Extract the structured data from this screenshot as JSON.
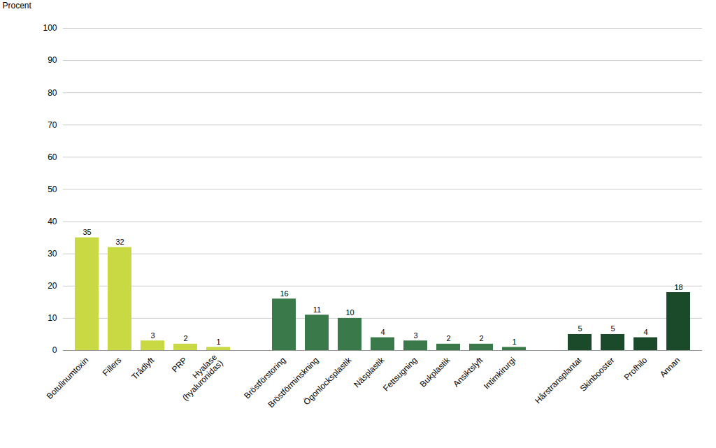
{
  "chart_data": {
    "type": "bar",
    "ylabel": "Procent",
    "categories": [
      "Botulinumtoxin",
      "Fillers",
      "Trådlyft",
      "PRP",
      "Hyalase\n(hyaluronidas)",
      null,
      "Bröstförstoring",
      "Bröstförminskning",
      "Ögonlocksplastik",
      "Näsplastik",
      "Fettsugning",
      "Bukplastik",
      "Ansiktslyft",
      "Intimkirurgi",
      null,
      "Hårstransplantat",
      "Skinbooster",
      "Profhilo",
      "Annan"
    ],
    "values": [
      35,
      32,
      3,
      2,
      1,
      null,
      16,
      11,
      10,
      4,
      3,
      2,
      2,
      1,
      null,
      5,
      5,
      4,
      18
    ],
    "colors": [
      "#c8d943",
      "#c8d943",
      "#c8d943",
      "#c8d943",
      "#c8d943",
      "#ffffff",
      "#3a7a4a",
      "#3a7a4a",
      "#3a7a4a",
      "#3a7a4a",
      "#3a7a4a",
      "#3a7a4a",
      "#3a7a4a",
      "#3a7a4a",
      "#ffffff",
      "#1a4a2a",
      "#1a4a2a",
      "#1a4a2a",
      "#1a4a2a"
    ],
    "ylim": [
      0,
      100
    ],
    "yticks": [
      0,
      10,
      20,
      30,
      40,
      50,
      60,
      70,
      80,
      90,
      100
    ],
    "grid": true,
    "data_labels": true
  }
}
